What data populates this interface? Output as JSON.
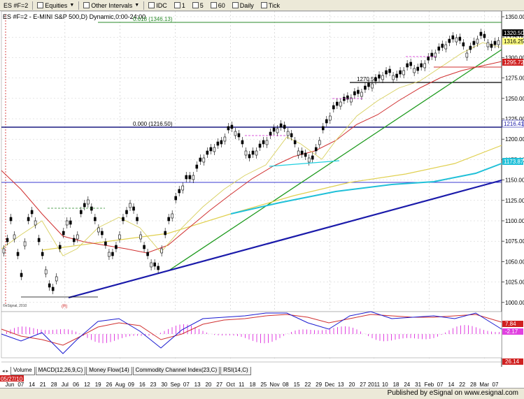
{
  "toolbar": {
    "symbol": "ES #F=2",
    "sector": "Equities",
    "intervals": "Other Intervals",
    "idc": "IDC",
    "i1": "1",
    "i5": "5",
    "i60": "60",
    "daily": "Daily",
    "tick": "Tick"
  },
  "chart": {
    "title": "ES #F=2 - E-MINI S&P 500,D) Dynamic,0:00-24:00",
    "fib_618": "0.618 (1346.13)",
    "fib_000": "0.000 (1216.50)",
    "level_1270": "1270.50",
    "copyright": "©eSignal, 2010",
    "r_label": "(R)"
  },
  "price_axis": {
    "ticks": [
      "1350.00",
      "1325.00",
      "1300.00",
      "1275.00",
      "1250.00",
      "1225.00",
      "1200.00",
      "1175.00",
      "1150.00",
      "1125.00",
      "1100.00",
      "1075.00",
      "1050.00",
      "1025.00",
      "1000.00"
    ],
    "last_price": "1320.50",
    "yellow_box": "1316.25",
    "red_box": "1295.72",
    "blue_box": "1216.41",
    "cyan_box": "1173.87",
    "macd_red": "7.84",
    "macd_mag": "-2.17",
    "bottom_red": "26.14"
  },
  "tabs": [
    "Volume",
    "MACD(12,26,9,C)",
    "Money Flow(14)",
    "Commodity Channel Index(23,C)",
    "RSI(14,C)"
  ],
  "xaxis": {
    "first_date": "05/27/10",
    "labels": [
      "Jun",
      "07",
      "14",
      "21",
      "28",
      "Jul",
      "06",
      "12",
      "19",
      "26",
      "Aug",
      "09",
      "16",
      "23",
      "30",
      "Sep",
      "07",
      "13",
      "20",
      "27",
      "Oct",
      "11",
      "18",
      "25",
      "Nov",
      "08",
      "15",
      "22",
      "29",
      "Dec",
      "13",
      "20",
      "27",
      "2011",
      "10",
      "18",
      "24",
      "31",
      "Feb",
      "07",
      "14",
      "22",
      "28",
      "Mar",
      "07"
    ]
  },
  "footer": {
    "published": "Published by eSignal on www.esignal.com"
  },
  "colors": {
    "bg": "#ffffff",
    "up": "#ffffff",
    "down": "#000000",
    "fib": "#2a8a2a",
    "trend": "#1a1aaa",
    "ma": "#d03030"
  }
}
